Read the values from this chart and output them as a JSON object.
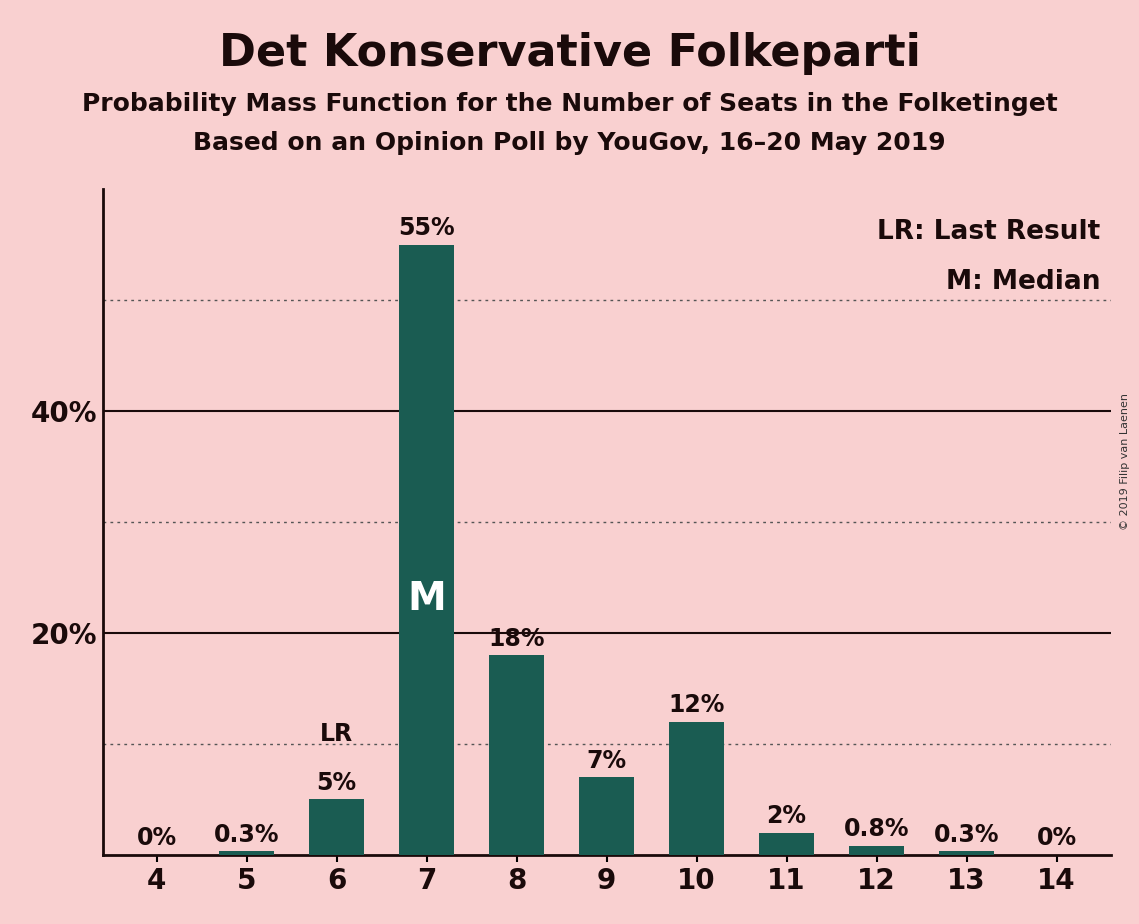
{
  "title": "Det Konservative Folkeparti",
  "subtitle1": "Probability Mass Function for the Number of Seats in the Folketinget",
  "subtitle2": "Based on an Opinion Poll by YouGov, 16–20 May 2019",
  "copyright": "© 2019 Filip van Laenen",
  "categories": [
    4,
    5,
    6,
    7,
    8,
    9,
    10,
    11,
    12,
    13,
    14
  ],
  "values": [
    0,
    0.3,
    5,
    55,
    18,
    7,
    12,
    2,
    0.8,
    0.3,
    0
  ],
  "labels": [
    "0%",
    "0.3%",
    "5%",
    "55%",
    "18%",
    "7%",
    "12%",
    "2%",
    "0.8%",
    "0.3%",
    "0%"
  ],
  "bar_color": "#1a5c52",
  "background_color": "#f9d0d0",
  "median_bar": 7,
  "lr_bar": 6,
  "median_label": "M",
  "lr_label": "LR",
  "legend_lr": "LR: Last Result",
  "legend_m": "M: Median",
  "ylim": [
    0,
    60
  ],
  "dotted_lines": [
    10,
    30,
    50
  ],
  "solid_lines": [
    20,
    40
  ],
  "ytick_positions": [
    20,
    40
  ],
  "ytick_labels": [
    "20%",
    "40%"
  ],
  "title_fontsize": 32,
  "subtitle_fontsize": 18,
  "label_fontsize": 17,
  "tick_fontsize": 20,
  "legend_fontsize": 19,
  "text_color": "#1a0a0a",
  "grid_color": "#555555"
}
